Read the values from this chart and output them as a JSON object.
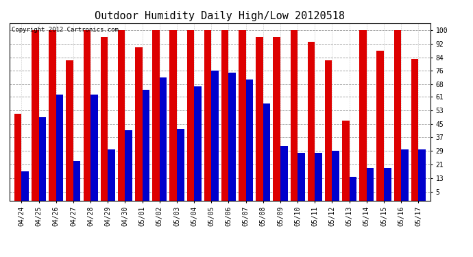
{
  "title": "Outdoor Humidity Daily High/Low 20120518",
  "copyright": "Copyright 2012 Cartronics.com",
  "dates": [
    "04/24",
    "04/25",
    "04/26",
    "04/27",
    "04/28",
    "04/29",
    "04/30",
    "05/01",
    "05/02",
    "05/03",
    "05/04",
    "05/05",
    "05/06",
    "05/07",
    "05/08",
    "05/09",
    "05/10",
    "05/11",
    "05/12",
    "05/13",
    "05/14",
    "05/15",
    "05/16",
    "05/17"
  ],
  "highs": [
    51,
    100,
    100,
    82,
    100,
    96,
    100,
    90,
    100,
    100,
    100,
    100,
    100,
    100,
    96,
    96,
    100,
    93,
    82,
    47,
    100,
    88,
    100,
    83
  ],
  "lows": [
    17,
    49,
    62,
    23,
    62,
    30,
    41,
    65,
    72,
    42,
    67,
    76,
    75,
    71,
    57,
    32,
    28,
    28,
    29,
    14,
    19,
    19,
    30,
    30
  ],
  "high_color": "#DD0000",
  "low_color": "#0000CC",
  "bg_color": "#FFFFFF",
  "grid_color": "#999999",
  "yticks": [
    5,
    13,
    21,
    29,
    37,
    45,
    53,
    61,
    68,
    76,
    84,
    92,
    100
  ],
  "ylim": [
    0,
    104
  ],
  "bar_width": 0.42,
  "title_fontsize": 11,
  "tick_fontsize": 7,
  "copyright_fontsize": 6.5
}
